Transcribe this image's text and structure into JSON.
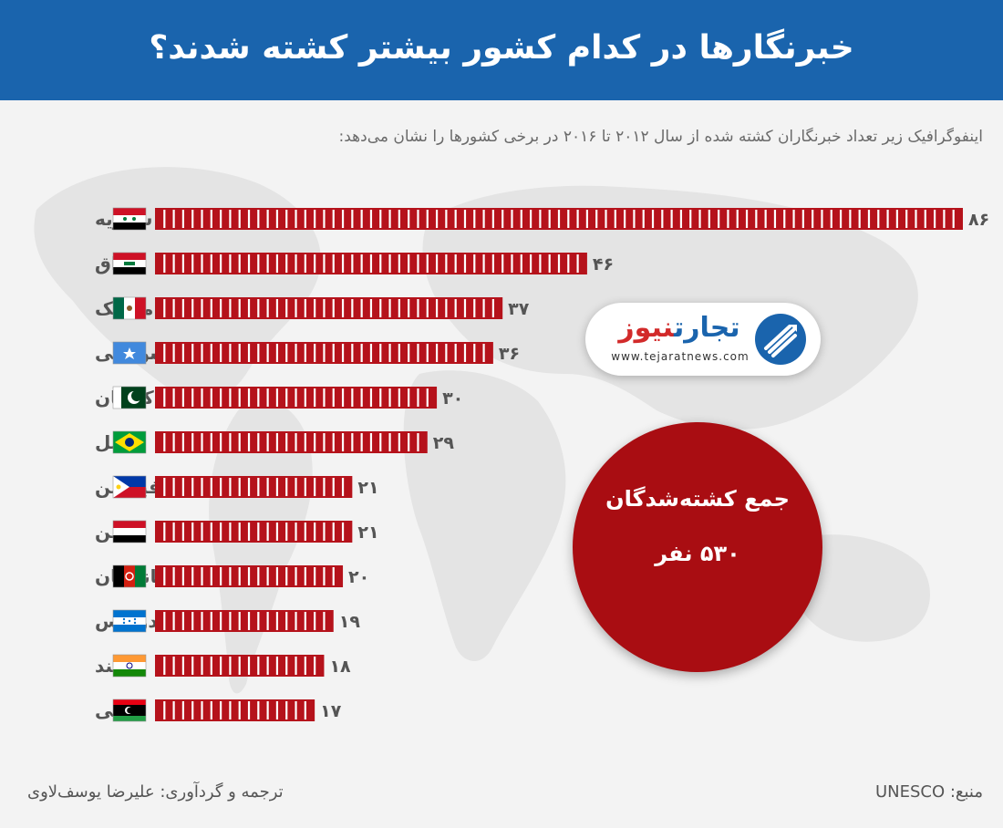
{
  "header": {
    "title": "خبرنگارها در کدام کشور بیشتر کشته شدند؟"
  },
  "subtitle": "اینفوگرافیک زیر تعداد خبرنگاران کشته شده از سال ۲۰۱۲ تا ۲۰۱۶ در برخی کشورها را نشان می‌دهد:",
  "chart_data": {
    "type": "bar",
    "orientation": "horizontal",
    "categories": [
      "سوریه",
      "عراق",
      "مکزیک",
      "سومالی",
      "پاکستان",
      "برزیل",
      "فیلیپین",
      "یمن",
      "افغانستان",
      "هندوراس",
      "هند",
      "لیبی"
    ],
    "values": [
      86,
      46,
      37,
      36,
      30,
      29,
      21,
      21,
      20,
      19,
      18,
      17
    ],
    "value_labels": [
      "۸۶",
      "۴۶",
      "۳۷",
      "۳۶",
      "۳۰",
      "۲۹",
      "۲۱",
      "۲۱",
      "۲۰",
      "۱۹",
      "۱۸",
      "۱۷"
    ],
    "bar_color": "#b5121b"
  },
  "logo": {
    "name_part1": "تجارت",
    "name_part2": "نیوز",
    "url": "www.tejaratnews.com"
  },
  "total": {
    "label": "جمع کشته‌شدگان",
    "value": "۵۳۰ نفر"
  },
  "footer": {
    "source": "منبع: UNESCO",
    "credit": "ترجمه و گردآوری: علیرضا یوسف‌لاوی"
  },
  "colors": {
    "header_bg": "#1a64ad",
    "circle": "#a90d12",
    "logo_blue": "#1a64ad",
    "logo_red": "#d22a2a"
  }
}
